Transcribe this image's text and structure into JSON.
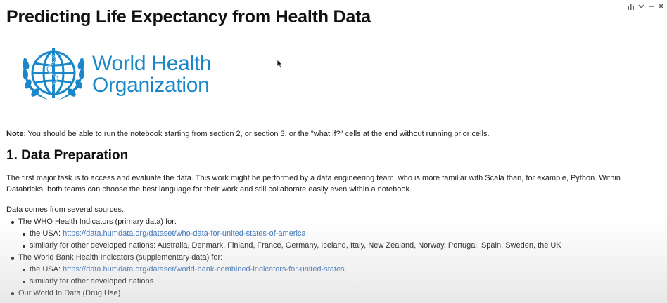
{
  "title": "Predicting Life Expectancy from Health Data",
  "logo": {
    "text_line1": "World Health",
    "text_line2": "Organization",
    "icon": "who-emblem-icon",
    "color": "#1a87c9"
  },
  "toolbar": {
    "icons": [
      "bar-chart-icon",
      "chevron-down-icon",
      "minus-icon",
      "close-icon"
    ]
  },
  "note": {
    "label": "Note",
    "text": ": You should be able to run the notebook starting from section 2, or section 3, or the \"what if?\" cells at the end without running prior cells."
  },
  "section1": {
    "heading": "1. Data Preparation",
    "paragraph": "The first major task is to access and evaluate the data. This work might be performed by a data engineering team, who is more familiar with Scala than, for example, Python. Within Databricks, both teams can choose the best language for their work and still collaborate easily even within a notebook.",
    "sources_intro": "Data comes from several sources.",
    "who": {
      "label": "The WHO Health Indicators (primary data) for:",
      "usa_prefix": "the USA: ",
      "usa_link": "https://data.humdata.org/dataset/who-data-for-united-states-of-america",
      "others": "similarly for other developed nations: Australia, Denmark, Finland, France, Germany, Iceland, Italy, New Zealand, Norway, Portugal, Spain, Sweden, the UK"
    },
    "worldbank": {
      "label": "The World Bank Health Indicators (supplementary data) for:",
      "usa_prefix": "the USA: ",
      "usa_link": "https://data.humdata.org/dataset/world-bank-combined-indicators-for-united-states",
      "others": "similarly for other developed nations"
    },
    "owid": {
      "label": "Our World In Data (Drug Use)"
    }
  }
}
